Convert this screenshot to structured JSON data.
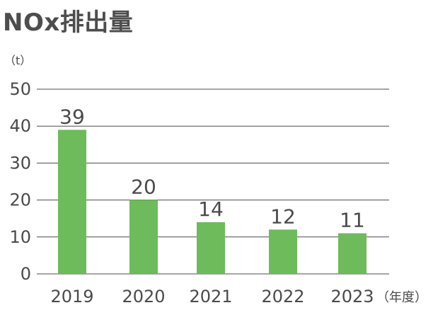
{
  "title": "NOx排出量",
  "chart_data": {
    "type": "bar",
    "title": "NOx排出量",
    "y_unit": "（t）",
    "x_unit": "（年度）",
    "categories": [
      "2019",
      "2020",
      "2021",
      "2022",
      "2023"
    ],
    "values": [
      39,
      20,
      14,
      12,
      11
    ],
    "data_labels": [
      "39",
      "20",
      "14",
      "12",
      "11"
    ],
    "yticks": [
      0,
      10,
      20,
      30,
      40,
      50
    ],
    "ylim": [
      0,
      50
    ],
    "grid": true,
    "bar_color": "#6dbb5b",
    "grid_color": "#4d4d4d"
  }
}
